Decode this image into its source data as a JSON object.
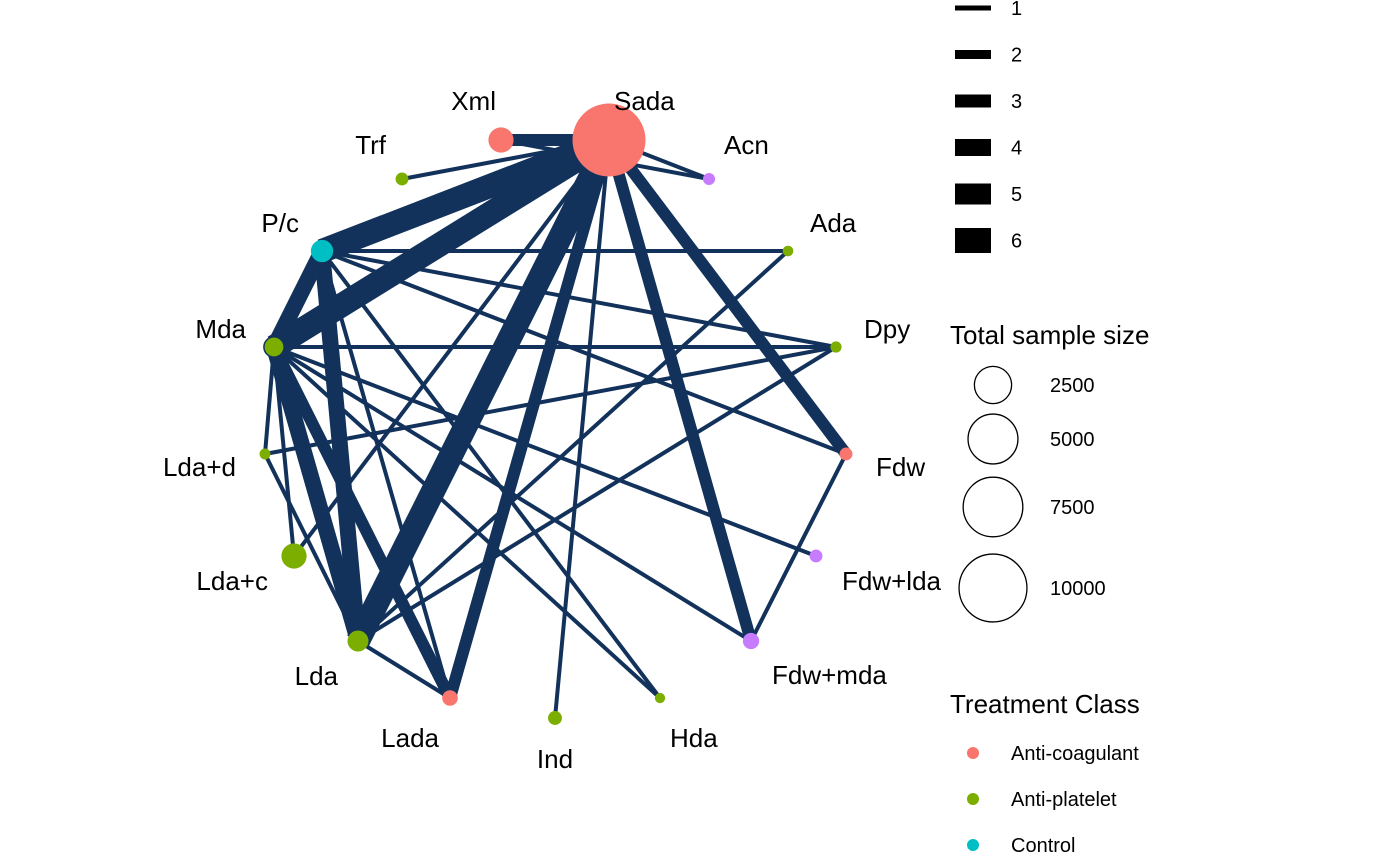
{
  "nodes": [
    {
      "id": "sada",
      "label": "Sada",
      "size": 10000,
      "class": "anti-coagulant"
    },
    {
      "id": "acn",
      "label": "Acn",
      "size": 60,
      "class": "other"
    },
    {
      "id": "ada",
      "label": "Ada",
      "size": 30,
      "class": "anti-platelet"
    },
    {
      "id": "dpy",
      "label": "Dpy",
      "size": 40,
      "class": "anti-platelet"
    },
    {
      "id": "fdw",
      "label": "Fdw",
      "size": 80,
      "class": "anti-coagulant"
    },
    {
      "id": "fdwlda",
      "label": "Fdw+lda",
      "size": 80,
      "class": "other"
    },
    {
      "id": "fdwmda",
      "label": "Fdw+mda",
      "size": 200,
      "class": "other"
    },
    {
      "id": "hda",
      "label": "Hda",
      "size": 25,
      "class": "anti-platelet"
    },
    {
      "id": "ind",
      "label": "Ind",
      "size": 110,
      "class": "anti-platelet"
    },
    {
      "id": "lada",
      "label": "Lada",
      "size": 170,
      "class": "anti-coagulant"
    },
    {
      "id": "lda",
      "label": "Lda",
      "size": 450,
      "class": "anti-platelet"
    },
    {
      "id": "ldac",
      "label": "Lda+c",
      "size": 760,
      "class": "anti-platelet"
    },
    {
      "id": "ldad",
      "label": "Lda+d",
      "size": 35,
      "class": "anti-platelet"
    },
    {
      "id": "mda",
      "label": "Mda",
      "size": 400,
      "class": "anti-platelet"
    },
    {
      "id": "pc",
      "label": "P/c",
      "size": 540,
      "class": "control"
    },
    {
      "id": "trf",
      "label": "Trf",
      "size": 80,
      "class": "anti-platelet"
    },
    {
      "id": "xml",
      "label": "Xml",
      "size": 760,
      "class": "anti-coagulant"
    }
  ],
  "edges": [
    {
      "from": "sada",
      "to": "xml",
      "weight": 3
    },
    {
      "from": "sada",
      "to": "trf",
      "weight": 1
    },
    {
      "from": "sada",
      "to": "acn",
      "weight": 1
    },
    {
      "from": "xml",
      "to": "acn",
      "weight": 1
    },
    {
      "from": "sada",
      "to": "pc",
      "weight": 6
    },
    {
      "from": "sada",
      "to": "mda",
      "weight": 6
    },
    {
      "from": "sada",
      "to": "lda",
      "weight": 6
    },
    {
      "from": "sada",
      "to": "lada",
      "weight": 3
    },
    {
      "from": "sada",
      "to": "ind",
      "weight": 1
    },
    {
      "from": "sada",
      "to": "fdwmda",
      "weight": 3
    },
    {
      "from": "sada",
      "to": "fdw",
      "weight": 3
    },
    {
      "from": "sada",
      "to": "ldac",
      "weight": 1
    },
    {
      "from": "pc",
      "to": "mda",
      "weight": 4
    },
    {
      "from": "pc",
      "to": "lda",
      "weight": 4
    },
    {
      "from": "pc",
      "to": "ada",
      "weight": 1
    },
    {
      "from": "pc",
      "to": "dpy",
      "weight": 1
    },
    {
      "from": "pc",
      "to": "fdw",
      "weight": 1
    },
    {
      "from": "pc",
      "to": "lada",
      "weight": 1
    },
    {
      "from": "pc",
      "to": "hda",
      "weight": 1
    },
    {
      "from": "mda",
      "to": "lda",
      "weight": 4
    },
    {
      "from": "mda",
      "to": "lada",
      "weight": 3
    },
    {
      "from": "mda",
      "to": "ldad",
      "weight": 1
    },
    {
      "from": "mda",
      "to": "dpy",
      "weight": 1
    },
    {
      "from": "mda",
      "to": "fdwlda",
      "weight": 1
    },
    {
      "from": "mda",
      "to": "fdwmda",
      "weight": 1
    },
    {
      "from": "mda",
      "to": "hda",
      "weight": 1
    },
    {
      "from": "mda",
      "to": "ldac",
      "weight": 1
    },
    {
      "from": "ldad",
      "to": "dpy",
      "weight": 1
    },
    {
      "from": "lda",
      "to": "ldad",
      "weight": 1
    },
    {
      "from": "lda",
      "to": "ada",
      "weight": 1
    },
    {
      "from": "lda",
      "to": "dpy",
      "weight": 1
    },
    {
      "from": "lda",
      "to": "lada",
      "weight": 1
    },
    {
      "from": "fdw",
      "to": "fdwmda",
      "weight": 1
    }
  ],
  "legends": {
    "edge_widths": {
      "title": "",
      "items": [
        "1",
        "2",
        "3",
        "4",
        "5",
        "6"
      ]
    },
    "sample_size": {
      "title": "Total sample size",
      "items": [
        "2500",
        "5000",
        "7500",
        "10000"
      ]
    },
    "treatment_class": {
      "title": "Treatment Class",
      "items": [
        {
          "label": "Anti-coagulant",
          "color": "#F8766D"
        },
        {
          "label": "Anti-platelet",
          "color": "#7CAE00"
        },
        {
          "label": "Control",
          "color": "#00BFC4"
        }
      ]
    }
  },
  "colors": {
    "edge": "#12325B",
    "anti-coagulant": "#F8766D",
    "anti-platelet": "#7CAE00",
    "control": "#00BFC4",
    "other": "#C77CFF"
  }
}
